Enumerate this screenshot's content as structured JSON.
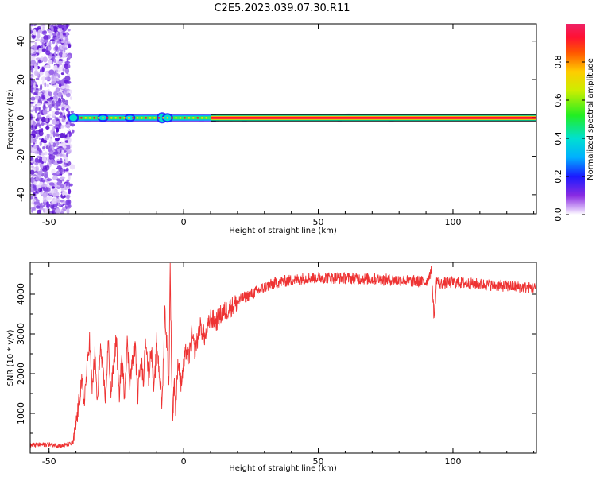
{
  "title": "C2E5.2023.039.07.30.R11",
  "chart_data": [
    {
      "type": "heatmap",
      "xlabel": "Height of straight line (km)",
      "ylabel": "Frequency (Hz)",
      "xlim": [
        -57,
        131
      ],
      "ylim": [
        -50,
        49
      ],
      "xticks": [
        -50,
        0,
        50,
        100
      ],
      "yticks": [
        -40,
        -20,
        0,
        20,
        40
      ],
      "colorbar": {
        "label": "Normalized spectral amplitude",
        "range": [
          0,
          1
        ],
        "ticks": [
          "0.0",
          "0.2",
          "0.4",
          "0.6",
          "0.8"
        ]
      },
      "noise_region_x": [
        -57,
        -41
      ],
      "signal_band_hz": [
        -2,
        2
      ],
      "series": [
        {
          "x": [
            -40,
            -30,
            -20,
            -10,
            0,
            10,
            20,
            40,
            60,
            80,
            100,
            120,
            131
          ],
          "peak_frequency": [
            1,
            1,
            1,
            1,
            0,
            0,
            0,
            0,
            0,
            0,
            0,
            0,
            0
          ]
        }
      ]
    },
    {
      "type": "line",
      "xlabel": "Height of straight line (km)",
      "ylabel": "SNR (10 * v/v)",
      "xlim": [
        -57,
        131
      ],
      "ylim": [
        0,
        4800
      ],
      "xticks": [
        -50,
        0,
        50,
        100
      ],
      "yticks": [
        1000,
        2000,
        3000,
        4000
      ],
      "color": "#ee3333",
      "series": [
        {
          "x": [
            -57,
            -50,
            -45,
            -41,
            -39,
            -38,
            -37,
            -36,
            -35,
            -34,
            -33,
            -32,
            -31,
            -30,
            -29,
            -28,
            -27,
            -26,
            -25,
            -24,
            -23,
            -22,
            -21,
            -20,
            -19,
            -18,
            -17,
            -16,
            -15,
            -14,
            -13,
            -12,
            -11,
            -10,
            -9,
            -8,
            -7,
            -6,
            -5.5,
            -5,
            -4.5,
            -4,
            -3.5,
            -3,
            -2,
            -1,
            0,
            1,
            2,
            3,
            4,
            5,
            6,
            8,
            10,
            12,
            14,
            16,
            18,
            20,
            22,
            25,
            28,
            31,
            35,
            40,
            45,
            50,
            60,
            70,
            80,
            90,
            92,
            93,
            94,
            95,
            100,
            110,
            120,
            131
          ],
          "y": [
            200,
            220,
            180,
            250,
            1200,
            1800,
            1300,
            2000,
            2900,
            1600,
            2500,
            1200,
            2700,
            2000,
            1400,
            2800,
            1500,
            2200,
            2900,
            1400,
            2400,
            1500,
            2800,
            1800,
            2300,
            2700,
            1400,
            2500,
            1800,
            2900,
            1900,
            2700,
            1500,
            2800,
            2000,
            1200,
            3600,
            2500,
            1600,
            4750,
            2200,
            800,
            2000,
            1000,
            2400,
            1700,
            2200,
            2600,
            2400,
            3000,
            2600,
            2800,
            3200,
            2900,
            3400,
            3300,
            3500,
            3600,
            3700,
            3800,
            3900,
            4000,
            4100,
            4200,
            4300,
            4350,
            4400,
            4420,
            4400,
            4380,
            4350,
            4300,
            4600,
            3400,
            4400,
            4250,
            4300,
            4250,
            4200,
            4150
          ]
        }
      ]
    }
  ]
}
